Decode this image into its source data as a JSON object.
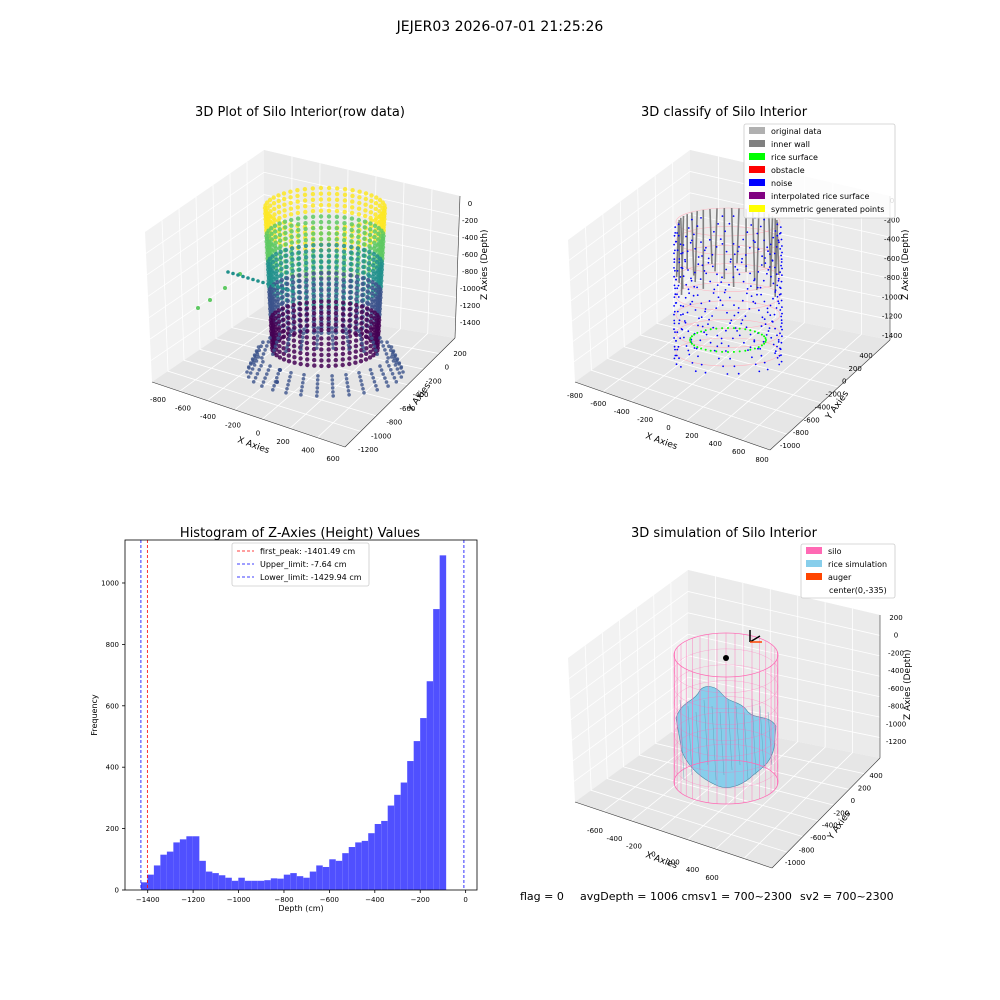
{
  "figure": {
    "suptitle": "JEJER03 2026-07-01 21:25:26",
    "footer": {
      "flag": "flag = 0",
      "avg": "avgDepth = 1006 cmsv1 = 700~2300",
      "sv2": "sv2 = 700~2300"
    }
  },
  "chart_data": [
    {
      "type": "scatter",
      "title": "3D Plot of Silo Interior(row data)",
      "xlabel": "X Axies",
      "ylabel": "Y Axies",
      "zlabel": "Z Axies (Depth)",
      "x_ticks": [
        "-800",
        "-600",
        "-400",
        "-200",
        "0",
        "200",
        "400",
        "600"
      ],
      "y_ticks": [
        "200",
        "0",
        "-200",
        "-400",
        "-600",
        "-800",
        "-1000",
        "-1200"
      ],
      "z_ticks": [
        "0",
        "-200",
        "-400",
        "-600",
        "-800",
        "-1000",
        "-1200",
        "-1400"
      ],
      "colormap": [
        "#440154",
        "#3b528b",
        "#21918c",
        "#5ec962",
        "#fde725"
      ],
      "cylinder": {
        "center_x": -150,
        "center_y": -450,
        "radius": 300,
        "z_top": 0,
        "z_bottom": -1400
      },
      "outliers": [
        {
          "x": -800,
          "y": -150,
          "z": -600
        },
        {
          "x": -700,
          "y": -200,
          "z": -500
        },
        {
          "x": -600,
          "y": -250,
          "z": -420
        },
        {
          "x": -500,
          "y": -300,
          "z": -350
        },
        {
          "x": -150,
          "y": -1100,
          "z": -1400
        },
        {
          "x": -100,
          "y": -1150,
          "z": -1400
        }
      ]
    },
    {
      "type": "scatter",
      "title": "3D classify of Silo Interior",
      "xlabel": "X Axies",
      "ylabel": "Y Axies",
      "zlabel": "Z Axies (Depth)",
      "x_ticks": [
        "-800",
        "-600",
        "-400",
        "-200",
        "0",
        "200",
        "400",
        "600",
        "800"
      ],
      "y_ticks": [
        "400",
        "200",
        "0",
        "-200",
        "-400",
        "-600",
        "-800",
        "-1000"
      ],
      "z_ticks": [
        "0",
        "-200",
        "-400",
        "-600",
        "-800",
        "-1000",
        "-1200",
        "-1400"
      ],
      "legend": [
        {
          "label": "original data",
          "color": "#b0b0b0"
        },
        {
          "label": "inner wall",
          "color": "#808080"
        },
        {
          "label": "rice surface",
          "color": "#00ff00"
        },
        {
          "label": "obstacle",
          "color": "#ff0000"
        },
        {
          "label": "noise",
          "color": "#0000ff"
        },
        {
          "label": "interpolated rice surface",
          "color": "#800080"
        },
        {
          "label": "symmetric generated points",
          "color": "#ffff00"
        }
      ]
    },
    {
      "type": "bar",
      "title": "Histogram of Z-Axies (Height) Values",
      "xlabel": "Depth (cm)",
      "ylabel": "Frequency",
      "xlim": [
        -1500,
        50
      ],
      "ylim": [
        0,
        1140
      ],
      "x_ticks": [
        -1400,
        -1200,
        -1000,
        -800,
        -600,
        -400,
        -200,
        0
      ],
      "y_ticks": [
        0,
        200,
        400,
        600,
        800,
        1000
      ],
      "bin_start": -1430,
      "bin_width": 28.6,
      "bar_color": "#5050ff",
      "values": [
        25,
        50,
        80,
        115,
        125,
        155,
        165,
        175,
        175,
        95,
        60,
        55,
        48,
        40,
        30,
        40,
        30,
        30,
        30,
        32,
        38,
        37,
        50,
        55,
        45,
        40,
        60,
        80,
        75,
        100,
        95,
        120,
        140,
        155,
        160,
        185,
        215,
        225,
        275,
        310,
        350,
        420,
        485,
        560,
        680,
        915,
        1090
      ],
      "lines": [
        {
          "label": "first_peak: -1401.49 cm",
          "value": -1401.49,
          "color": "#ff0000"
        },
        {
          "label": "Upper_limit: -7.64 cm",
          "value": -7.64,
          "color": "#0000ff"
        },
        {
          "label": "Lower_limit: -1429.94 cm",
          "value": -1429.94,
          "color": "#0000ff"
        }
      ]
    },
    {
      "type": "area",
      "title": "3D simulation of Silo Interior",
      "xlabel": "X Axies",
      "ylabel": "Y Axies",
      "zlabel": "Z Axies (Depth)",
      "x_ticks": [
        "-600",
        "-400",
        "-200",
        "0",
        "200",
        "400",
        "600"
      ],
      "y_ticks": [
        "400",
        "200",
        "0",
        "-200",
        "-400",
        "-600",
        "-800",
        "-1000"
      ],
      "z_ticks": [
        "200",
        "0",
        "-200",
        "-400",
        "-600",
        "-800",
        "-1000",
        "-1200"
      ],
      "legend": [
        {
          "label": "silo",
          "color": "#ff69b4"
        },
        {
          "label": "rice simulation",
          "color": "#87ceeb"
        },
        {
          "label": "auger",
          "color": "#ff4500"
        },
        {
          "label": "center(0,-335)",
          "color": ""
        }
      ]
    }
  ]
}
